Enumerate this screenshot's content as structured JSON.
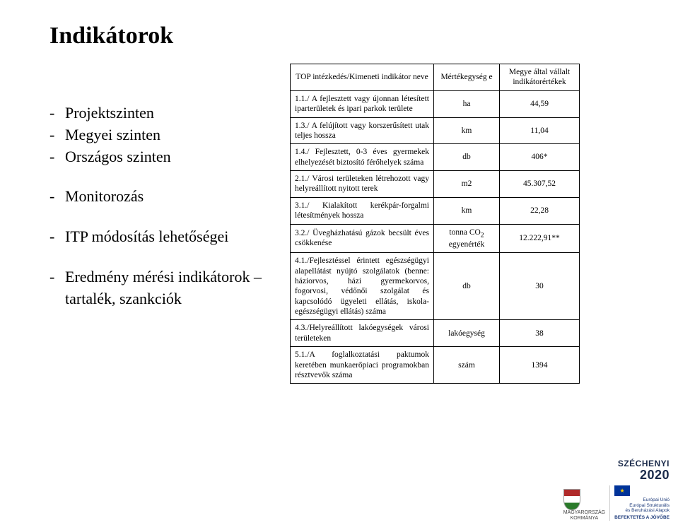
{
  "title": "Indikátorok",
  "left_items": [
    "Projektszinten",
    "Megyei szinten",
    "Országos szinten",
    "",
    "Monitorozás",
    "",
    "ITP módosítás lehetőségei",
    "",
    "Eredmény mérési indikátorok – tartalék, szankciók"
  ],
  "table": {
    "headers": [
      "TOP intézkedés/Kimeneti indikátor neve",
      "Mértékegység e",
      "Megye által vállalt indikátorértékek"
    ],
    "rows": [
      {
        "c1": "1.1./ A fejlesztett vagy újonnan létesített iparterületek és ipari parkok területe",
        "c2": "ha",
        "c3": "44,59"
      },
      {
        "c1": "1.3./ A felújított vagy korszerűsített utak teljes hossza",
        "c2": "km",
        "c3": "11,04"
      },
      {
        "c1": "1.4./ Fejlesztett, 0-3 éves gyermekek elhelyezését biztosító férőhelyek száma",
        "c2": "db",
        "c3": "406*"
      },
      {
        "c1": "2.1./ Városi területeken létrehozott vagy helyreállított nyitott terek",
        "c2": "m2",
        "c3": "45.307,52"
      },
      {
        "c1": "3.1./ Kialakított kerékpár-forgalmi létesítmények hossza",
        "c2": "km",
        "c3": "22,28"
      },
      {
        "c1": "3.2./ Üvegházhatású gázok becsült éves csökkenése",
        "c2_html": "tonna CO<sub>2</sub> egyenérték",
        "c3": "12.222,91**"
      },
      {
        "c1": "4.1./Fejlesztéssel érintett egészségügyi alapellátást nyújtó szolgálatok (benne: háziorvos, házi gyermekorvos, fogorvosi, védőnői szolgálat és kapcsolódó ügyeleti ellátás, iskola-egészségügyi ellátás) száma",
        "c2": "db",
        "c3": "30"
      },
      {
        "c1": "4.3./Helyreállított lakóegységek városi területeken",
        "c2": "lakóegység",
        "c3": "38"
      },
      {
        "c1": "5.1./A foglalkoztatási paktumok keretében munkaerőpiaci programokban résztvevők száma",
        "c2": "szám",
        "c3": "1394"
      }
    ]
  },
  "footer": {
    "brand_small": "SZÉCHENYI",
    "brand_big": "2020",
    "gov_line1": "MAGYARORSZÁG",
    "gov_line2": "KORMÁNYA",
    "eu_line1": "Európai Unió",
    "eu_line2": "Európai Strukturális",
    "eu_line3": "és Beruházási Alapok",
    "eu_line4": "BEFEKTETÉS A JÖVŐBE"
  }
}
